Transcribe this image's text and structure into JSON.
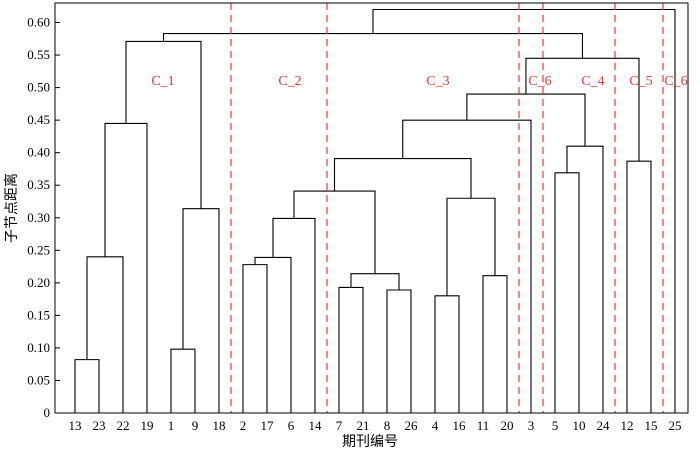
{
  "axis": {
    "ylabel": "子节点距离",
    "xlabel": "期刊编号",
    "yticks": [
      "0",
      "0.05",
      "0.10",
      "0.15",
      "0.20",
      "0.25",
      "0.30",
      "0.35",
      "0.40",
      "0.45",
      "0.50",
      "0.55",
      "0.60"
    ],
    "ylim": [
      0,
      0.63
    ]
  },
  "leaves": [
    "13",
    "23",
    "22",
    "19",
    "1",
    "9",
    "18",
    "2",
    "17",
    "6",
    "14",
    "7",
    "21",
    "8",
    "26",
    "4",
    "16",
    "11",
    "20",
    "3",
    "5",
    "10",
    "24",
    "12",
    "15",
    "25"
  ],
  "merges": [
    {
      "a": "L0",
      "b": "L1",
      "h": 0.082
    },
    {
      "a": "L4",
      "b": "L5",
      "h": 0.098
    },
    {
      "a": "L13",
      "b": "L14",
      "h": 0.189
    },
    {
      "a": "L11",
      "b": "L12",
      "h": 0.193
    },
    {
      "a": "L15",
      "b": "L16",
      "h": 0.18
    },
    {
      "a": "L17",
      "b": "L18",
      "h": 0.211
    },
    {
      "a": "L7",
      "b": "L8",
      "h": 0.228
    },
    {
      "a": "N3",
      "b": "N2",
      "h": 0.214
    },
    {
      "a": "N6",
      "b": "L9",
      "h": 0.239
    },
    {
      "a": "N0",
      "b": "L2",
      "h": 0.24
    },
    {
      "a": "N8",
      "b": "L10",
      "h": 0.299
    },
    {
      "a": "N1",
      "b": "L6",
      "h": 0.314
    },
    {
      "a": "N4",
      "b": "N5",
      "h": 0.33
    },
    {
      "a": "N10",
      "b": "N7",
      "h": 0.341
    },
    {
      "a": "L20",
      "b": "L21",
      "h": 0.369
    },
    {
      "a": "L23",
      "b": "L24",
      "h": 0.387
    },
    {
      "a": "N13",
      "b": "N12",
      "h": 0.391
    },
    {
      "a": "N14",
      "b": "L22",
      "h": 0.41
    },
    {
      "a": "N9",
      "b": "L3",
      "h": 0.445
    },
    {
      "a": "N16",
      "b": "L19",
      "h": 0.45
    },
    {
      "a": "N19",
      "b": "N17",
      "h": 0.49
    },
    {
      "a": "N20",
      "b": "N15",
      "h": 0.545
    },
    {
      "a": "N18",
      "b": "N11",
      "h": 0.571
    },
    {
      "a": "N22",
      "b": "N21",
      "h": 0.583
    },
    {
      "a": "N23",
      "b": "L25",
      "h": 0.62
    }
  ],
  "clusters": [
    {
      "label": "C_1"
    },
    {
      "label": "C_2"
    },
    {
      "label": "C_3"
    },
    {
      "label": "C_6"
    },
    {
      "label": "C_4"
    },
    {
      "label": "C_5"
    },
    {
      "label": "C_6"
    }
  ],
  "cut_after_leaf": [
    "18",
    "14",
    "20",
    "3",
    "24",
    "15"
  ],
  "colors": {
    "tree": "#000000",
    "cut_line": "#e8382f",
    "cluster_label": "#e8382f"
  }
}
